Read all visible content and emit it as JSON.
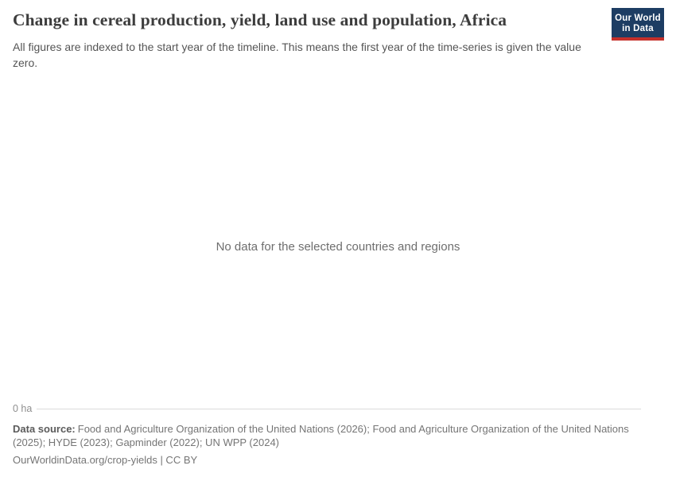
{
  "header": {
    "title": "Change in cereal production, yield, land use and population, Africa",
    "subtitle": "All figures are indexed to the start year of the timeline. This means the first year of the time-series is given the value zero.",
    "logo": {
      "line1": "Our World",
      "line2": "in Data"
    }
  },
  "chart": {
    "empty_message": "No data for the selected countries and regions",
    "axis_tick_label": "0 ha"
  },
  "chart_data": {
    "type": "line",
    "title": "Change in cereal production, yield, land use and population, Africa",
    "subtitle": "All figures are indexed to the start year of the timeline. This means the first year of the time-series is given the value zero.",
    "series": [],
    "categories": [],
    "y_ticks": [
      "0 ha"
    ],
    "ylabel": "",
    "xlabel": "",
    "grid": true,
    "annotations": [
      "No data for the selected countries and regions"
    ]
  },
  "footer": {
    "data_source_label": "Data source:",
    "data_source_text": "Food and Agriculture Organization of the United Nations (2026); Food and Agriculture Organization of the United Nations (2025); HYDE (2023); Gapminder (2022); UN WPP (2024)",
    "attribution": "OurWorldinData.org/crop-yields | CC BY"
  },
  "colors": {
    "logo_navy": "#1d3d63",
    "logo_red": "#c5302b",
    "title_text": "#3d3d3d",
    "subtitle_text": "#555555",
    "empty_message_text": "#6e6e6e",
    "grid_line": "#dcdcdc",
    "tick_label": "#8f8f8f",
    "footer_text": "#757575",
    "footer_label": "#5b5b5b",
    "background": "#ffffff"
  }
}
